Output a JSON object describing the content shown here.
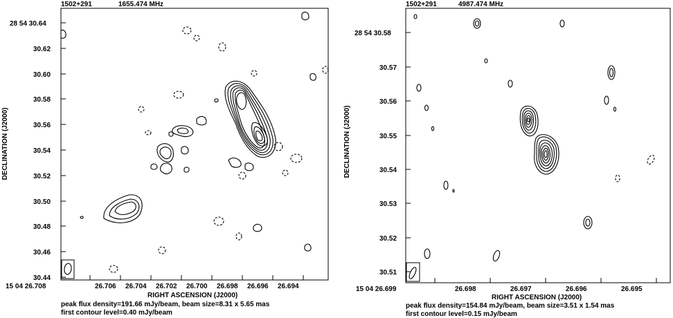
{
  "chart_data": [
    {
      "type": "contour",
      "source": "1502+291",
      "frequency": "1655.474 MHz",
      "xlabel": "RIGHT ASCENSION (J2000)",
      "ylabel": "DECLINATION (J2000)",
      "dec_prefix": "28 54 30.64",
      "ra_prefix": "15 04 26.708",
      "xticks": [
        "26.706",
        "26.704",
        "26.702",
        "26.700",
        "26.698",
        "26.696",
        "26.694"
      ],
      "yticks": [
        "30.62",
        "30.60",
        "30.58",
        "30.56",
        "30.54",
        "30.52",
        "30.50",
        "30.48",
        "30.46",
        "30.44"
      ],
      "x_range": [
        26.708,
        26.6925
      ],
      "y_range": [
        30.44,
        30.647
      ],
      "peak_line": "peak flux density=191.66 mJy/beam, beam size=8.31 x 5.65 mas",
      "contour_line": "first contour level=0.40 mJy/beam",
      "peak_flux_mJy_per_beam": 191.66,
      "beam_size_mas": [
        8.31,
        5.65
      ],
      "first_contour_mJy_per_beam": 0.4
    },
    {
      "type": "contour",
      "source": "1502+291",
      "frequency": "4987.474 MHz",
      "xlabel": "RIGHT ASCENSION (J2000)",
      "ylabel": "DECLINATION (J2000)",
      "dec_prefix": "28 54 30.58",
      "ra_prefix": "15 04 26.699",
      "xticks": [
        "26.698",
        "26.697",
        "26.696",
        "26.695"
      ],
      "yticks": [
        "30.57",
        "30.56",
        "30.55",
        "30.54",
        "30.53",
        "30.52",
        "30.51"
      ],
      "x_range": [
        26.6991,
        26.6943
      ],
      "y_range": [
        30.5075,
        30.5855
      ],
      "peak_line": "peak flux density=154.84 mJy/beam, beam size=3.51 x 1.54 mas",
      "contour_line": "first contour level=0.15 mJy/beam",
      "peak_flux_mJy_per_beam": 154.84,
      "beam_size_mas": [
        3.51,
        1.54
      ],
      "first_contour_mJy_per_beam": 0.15
    }
  ]
}
